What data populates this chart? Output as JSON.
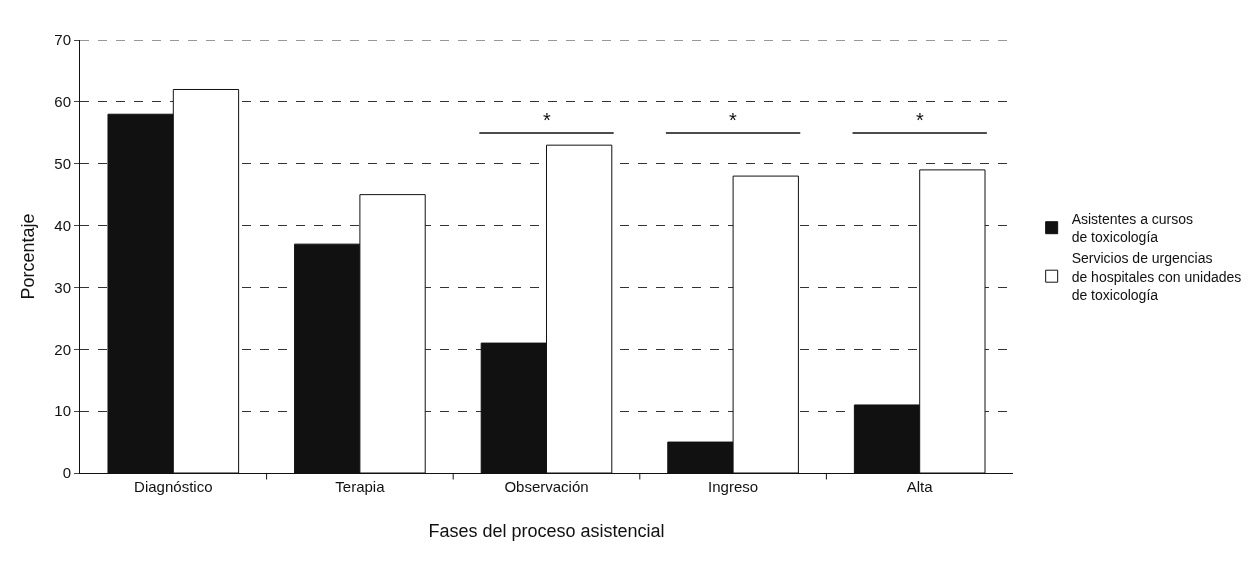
{
  "chart_data": {
    "type": "bar",
    "xlabel": "Fases del proceso asistencial",
    "ylabel": "Porcentaje",
    "categories": [
      "Diagnóstico",
      "Terapia",
      "Observación",
      "Ingreso",
      "Alta"
    ],
    "series": [
      {
        "name": "Asistentes a cursos\nde toxicología",
        "color": "#111111",
        "values": [
          58,
          37,
          21,
          5,
          11
        ]
      },
      {
        "name": "Servicios de urgencias\nde hospitales con unidades\nde toxicología",
        "color": "#ffffff",
        "values": [
          62,
          45,
          53,
          48,
          49
        ]
      }
    ],
    "ylim": [
      0,
      70
    ],
    "yticks": [
      0,
      10,
      20,
      30,
      40,
      50,
      60,
      70
    ],
    "grid": "y",
    "legend": "right",
    "annotations": [
      "*",
      "*",
      "*"
    ]
  }
}
